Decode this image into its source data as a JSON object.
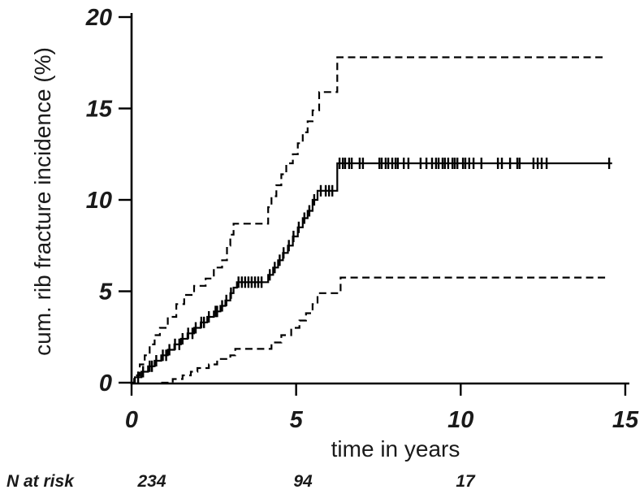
{
  "figure": {
    "background": "#ffffff",
    "line_color": "#000000"
  },
  "chart_data": {
    "type": "line",
    "subtype": "kaplan-meier-cumulative-incidence-step",
    "title": "",
    "xlabel": "time in years",
    "ylabel": "cum. rib fracture incidence (%)",
    "xlim": [
      0,
      15
    ],
    "ylim": [
      0,
      20
    ],
    "grid": false,
    "legend": "none",
    "x_ticks": [
      0,
      5,
      10,
      15
    ],
    "y_ticks": [
      0,
      5,
      10,
      15,
      20
    ],
    "x_tick_labels": [
      "0",
      "5",
      "10",
      "15"
    ],
    "y_tick_labels": [
      "0",
      "5",
      "10",
      "15",
      "20"
    ],
    "series": [
      {
        "name": "cumulative rib fracture incidence estimate",
        "style": "solid",
        "start_t": 0,
        "end_t": 14.6,
        "steps": [
          [
            0.1,
            0.3
          ],
          [
            0.3,
            0.6
          ],
          [
            0.5,
            0.9
          ],
          [
            0.7,
            1.2
          ],
          [
            0.9,
            1.5
          ],
          [
            1.1,
            1.8
          ],
          [
            1.3,
            2.1
          ],
          [
            1.5,
            2.4
          ],
          [
            1.7,
            2.7
          ],
          [
            1.9,
            3.0
          ],
          [
            2.1,
            3.3
          ],
          [
            2.3,
            3.6
          ],
          [
            2.5,
            3.9
          ],
          [
            2.7,
            4.2
          ],
          [
            2.85,
            4.5
          ],
          [
            3.0,
            4.9
          ],
          [
            3.1,
            5.2
          ],
          [
            3.2,
            5.5
          ],
          [
            4.15,
            5.9
          ],
          [
            4.3,
            6.3
          ],
          [
            4.45,
            6.7
          ],
          [
            4.6,
            7.1
          ],
          [
            4.75,
            7.5
          ],
          [
            4.9,
            8.0
          ],
          [
            5.05,
            8.5
          ],
          [
            5.2,
            9.0
          ],
          [
            5.35,
            9.4
          ],
          [
            5.5,
            10.0
          ],
          [
            5.65,
            10.5
          ],
          [
            6.25,
            12.0
          ]
        ]
      },
      {
        "name": "upper 95% confidence limit",
        "style": "dashed",
        "start_t": 0,
        "end_t": 14.35,
        "steps": [
          [
            0.08,
            0.4
          ],
          [
            0.25,
            1.0
          ],
          [
            0.4,
            1.5
          ],
          [
            0.55,
            2.1
          ],
          [
            0.7,
            2.6
          ],
          [
            0.86,
            3.0
          ],
          [
            1.1,
            3.6
          ],
          [
            1.36,
            4.3
          ],
          [
            1.6,
            4.8
          ],
          [
            1.9,
            5.3
          ],
          [
            2.25,
            5.7
          ],
          [
            2.5,
            6.3
          ],
          [
            2.75,
            6.7
          ],
          [
            2.9,
            7.5
          ],
          [
            3.0,
            8.1
          ],
          [
            3.1,
            8.7
          ],
          [
            4.15,
            9.6
          ],
          [
            4.25,
            10.2
          ],
          [
            4.4,
            10.8
          ],
          [
            4.55,
            11.4
          ],
          [
            4.7,
            12.0
          ],
          [
            4.9,
            12.5
          ],
          [
            5.05,
            13.1
          ],
          [
            5.2,
            13.7
          ],
          [
            5.35,
            14.3
          ],
          [
            5.5,
            14.9
          ],
          [
            5.7,
            15.9
          ],
          [
            6.25,
            17.8
          ]
        ]
      },
      {
        "name": "lower 95% confidence limit",
        "style": "dashed",
        "start_t": 0.9,
        "end_t": 14.5,
        "steps": [
          [
            1.25,
            0.2
          ],
          [
            1.55,
            0.4
          ],
          [
            1.8,
            0.6
          ],
          [
            2.0,
            0.8
          ],
          [
            2.35,
            1.0
          ],
          [
            2.6,
            1.3
          ],
          [
            3.0,
            1.5
          ],
          [
            3.15,
            1.85
          ],
          [
            4.25,
            2.2
          ],
          [
            4.55,
            2.6
          ],
          [
            4.85,
            3.0
          ],
          [
            5.1,
            3.4
          ],
          [
            5.3,
            3.8
          ],
          [
            5.5,
            4.3
          ],
          [
            5.65,
            4.9
          ],
          [
            6.35,
            5.75
          ]
        ]
      }
    ],
    "censor_marks_series": "cumulative rib fracture incidence estimate",
    "censor_times": [
      0.2,
      0.35,
      0.55,
      0.62,
      0.75,
      0.95,
      1.05,
      1.15,
      1.32,
      1.45,
      1.55,
      1.72,
      1.85,
      1.95,
      2.12,
      2.2,
      2.35,
      2.55,
      2.6,
      2.75,
      2.88,
      3.02,
      3.25,
      3.35,
      3.45,
      3.55,
      3.65,
      3.75,
      3.85,
      3.95,
      4.2,
      4.35,
      4.5,
      4.62,
      4.78,
      4.92,
      5.08,
      5.25,
      5.4,
      5.55,
      5.75,
      5.9,
      6.0,
      6.1,
      6.32,
      6.42,
      6.49,
      6.61,
      6.69,
      6.93,
      7.03,
      7.53,
      7.6,
      7.72,
      7.8,
      7.92,
      8.02,
      8.09,
      8.27,
      8.41,
      8.78,
      8.96,
      9.13,
      9.25,
      9.33,
      9.45,
      9.52,
      9.62,
      9.75,
      9.82,
      9.9,
      10.07,
      10.14,
      10.26,
      10.39,
      10.63,
      11.13,
      11.25,
      11.5,
      11.72,
      11.79,
      12.21,
      12.34,
      12.46,
      12.61,
      14.51
    ],
    "n_at_risk": {
      "label": "N at risk",
      "times": [
        0,
        5,
        10
      ],
      "values": [
        "234",
        "94",
        "17"
      ]
    }
  }
}
